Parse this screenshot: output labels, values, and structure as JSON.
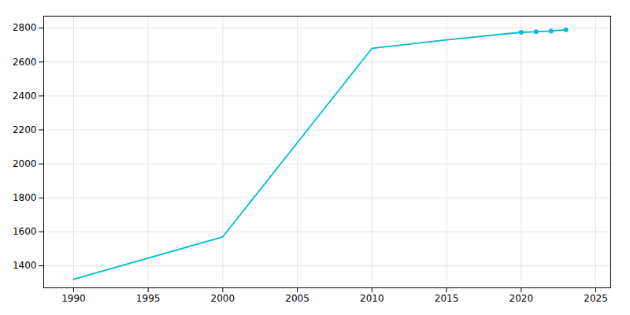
{
  "chart_data": {
    "type": "line",
    "x": [
      1990,
      2000,
      2010,
      2015,
      2020,
      2021,
      2022,
      2023
    ],
    "series": [
      {
        "type": "line",
        "color": "#00bcd4",
        "values": [
          1320,
          1570,
          2680,
          2730,
          2775,
          2778,
          2782,
          2790
        ]
      },
      {
        "type": "scatter",
        "marker": "circle",
        "color": "#00bcd4",
        "values": [
          null,
          null,
          null,
          null,
          2775,
          2778,
          2782,
          2790
        ]
      }
    ],
    "xlim": [
      1988,
      2026
    ],
    "ylim": [
      1270,
      2870
    ],
    "xticks": [
      1990,
      1995,
      2000,
      2005,
      2010,
      2015,
      2020,
      2025
    ],
    "yticks": [
      1400,
      1600,
      1800,
      2000,
      2200,
      2400,
      2600,
      2800
    ],
    "grid": true
  }
}
